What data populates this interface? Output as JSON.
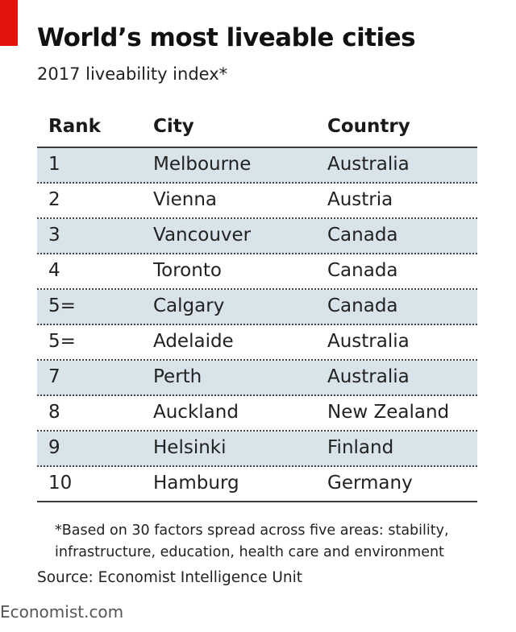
{
  "chart_data": {
    "type": "table",
    "title": "World’s most liveable cities",
    "subtitle": "2017 liveability index*",
    "columns": [
      "Rank",
      "City",
      "Country"
    ],
    "rows": [
      {
        "rank": "1",
        "city": "Melbourne",
        "country": "Australia"
      },
      {
        "rank": "2",
        "city": "Vienna",
        "country": "Austria"
      },
      {
        "rank": "3",
        "city": "Vancouver",
        "country": "Canada"
      },
      {
        "rank": "4",
        "city": "Toronto",
        "country": "Canada"
      },
      {
        "rank": "5=",
        "city": "Calgary",
        "country": "Canada"
      },
      {
        "rank": "5=",
        "city": "Adelaide",
        "country": "Australia"
      },
      {
        "rank": "7",
        "city": "Perth",
        "country": "Australia"
      },
      {
        "rank": "8",
        "city": "Auckland",
        "country": "New Zealand"
      },
      {
        "rank": "9",
        "city": "Helsinki",
        "country": "Finland"
      },
      {
        "rank": "10",
        "city": "Hamburg",
        "country": "Germany"
      }
    ],
    "footnote": "*Based on 30 factors spread across five areas: stability, infrastructure, education, health care and environment",
    "source": "Source: Economist Intelligence Unit"
  },
  "branding": {
    "site": "Economist.com"
  },
  "colors": {
    "accent": "#e3120b",
    "row_shade": "#d8e3ea",
    "rule": "#3c3c3c"
  }
}
